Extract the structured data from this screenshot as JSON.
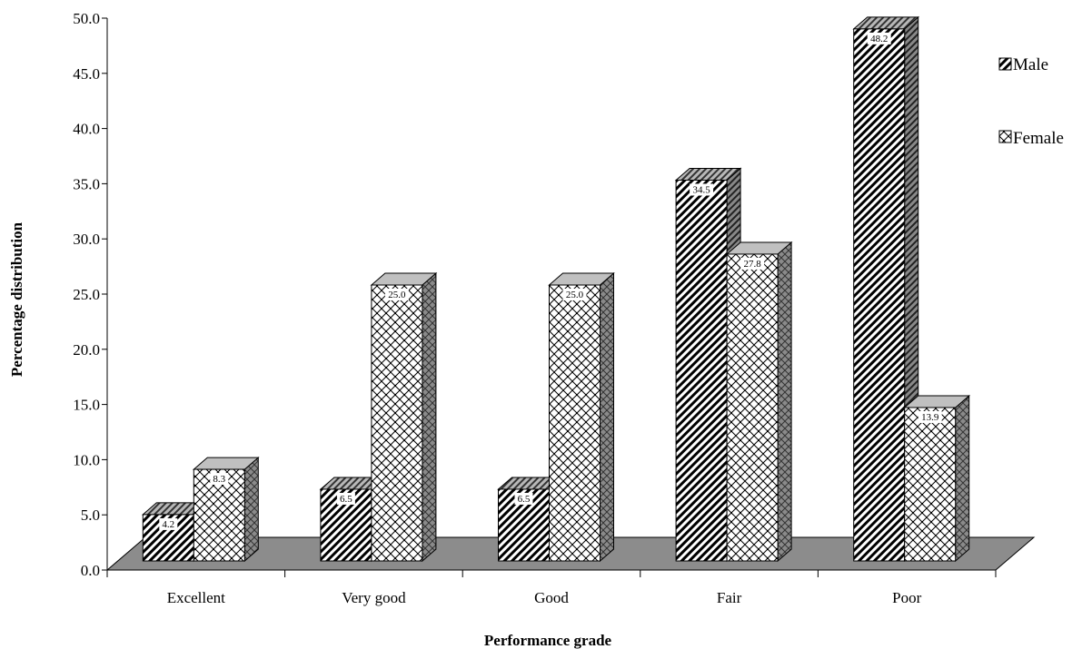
{
  "chart_data": {
    "type": "bar",
    "categories": [
      "Excellent",
      "Very good",
      "Good",
      "Fair",
      "Poor"
    ],
    "series": [
      {
        "name": "Male",
        "values": [
          4.2,
          6.5,
          6.5,
          34.5,
          48.2
        ],
        "labels": [
          "4.2",
          "6.5",
          "6.5",
          "34.5",
          "48.2"
        ]
      },
      {
        "name": "Female",
        "values": [
          8.3,
          25.0,
          25.0,
          27.8,
          13.9
        ],
        "labels": [
          "8.3",
          "25.0",
          "25.0",
          "27.8",
          "13.9"
        ]
      }
    ],
    "y_ticks": [
      "0.0",
      "5.0",
      "10.0",
      "15.0",
      "20.0",
      "25.0",
      "30.0",
      "35.0",
      "40.0",
      "45.0",
      "50.0"
    ],
    "ylim": [
      0,
      50
    ],
    "xlabel": "Performance grade",
    "ylabel": "Percentage distribution",
    "legend_position": "right",
    "grid": false,
    "three_d": true,
    "colors": {
      "floor": "#8c8c8c",
      "bar_front": "#ffffff",
      "bar_top": "#c0c0c0",
      "bar_side": "#808080",
      "pattern_ink": "#000000"
    }
  }
}
